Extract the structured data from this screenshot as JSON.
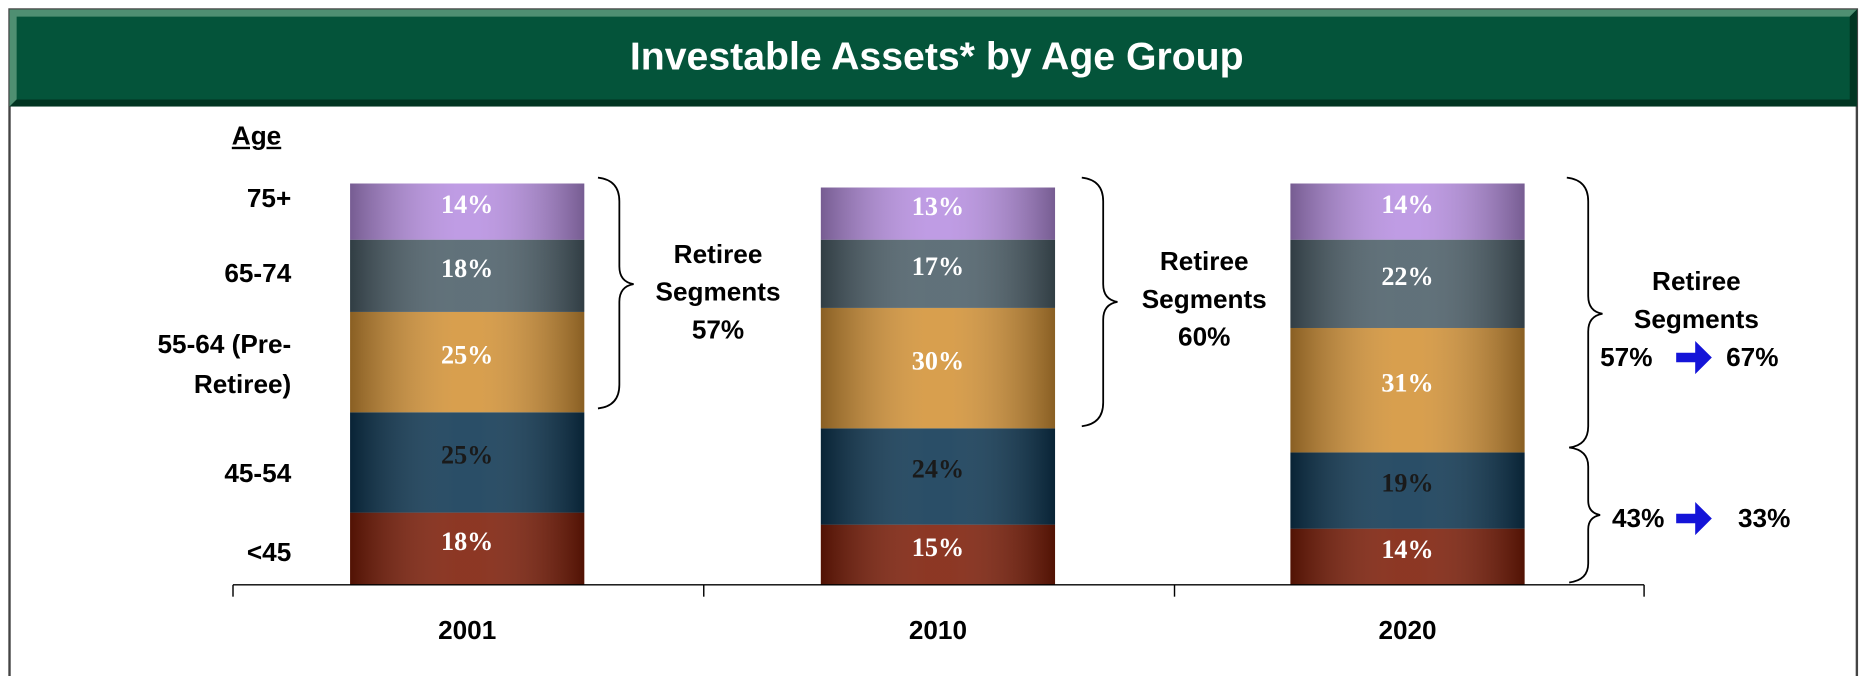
{
  "chart_data": {
    "type": "stacked_bar",
    "title": "Investable Assets* by Age Group",
    "legend_title": "Age",
    "categories": [
      "2001",
      "2010",
      "2020"
    ],
    "series": [
      {
        "name": "<45",
        "color": "#7d1c06",
        "label_color": "#ffffff",
        "values": [
          18,
          15,
          14
        ],
        "value_labels": [
          "18%",
          "15%",
          "14%"
        ]
      },
      {
        "name": "45-54",
        "color": "#0d3652",
        "label_color": "#1a1a1a",
        "values": [
          25,
          24,
          19
        ],
        "value_labels": [
          "25%",
          "24%",
          "19%"
        ]
      },
      {
        "name": "55-64 (Pre-Retiree)",
        "color": "#d39236",
        "label_color": "#ffffff",
        "values": [
          25,
          30,
          31
        ],
        "value_labels": [
          "25%",
          "30%",
          "31%"
        ]
      },
      {
        "name": "65-74",
        "color": "#4b5e68",
        "label_color": "#ffffff",
        "values": [
          18,
          17,
          22
        ],
        "value_labels": [
          "18%",
          "17%",
          "22%"
        ]
      },
      {
        "name": "75+",
        "color": "#b68ee0",
        "label_color": "#ffffff",
        "values": [
          14,
          13,
          14
        ],
        "value_labels": [
          "14%",
          "13%",
          "14%"
        ]
      }
    ],
    "ylim": [
      0,
      100
    ],
    "annotations": [
      {
        "text": "Retiree Segments",
        "value": "57%"
      },
      {
        "text": "Retiree Segments",
        "value": "60%"
      },
      {
        "text": "Retiree Segments",
        "from": "57%",
        "to": "67%"
      },
      {
        "from": "43%",
        "to": "33%"
      }
    ]
  }
}
